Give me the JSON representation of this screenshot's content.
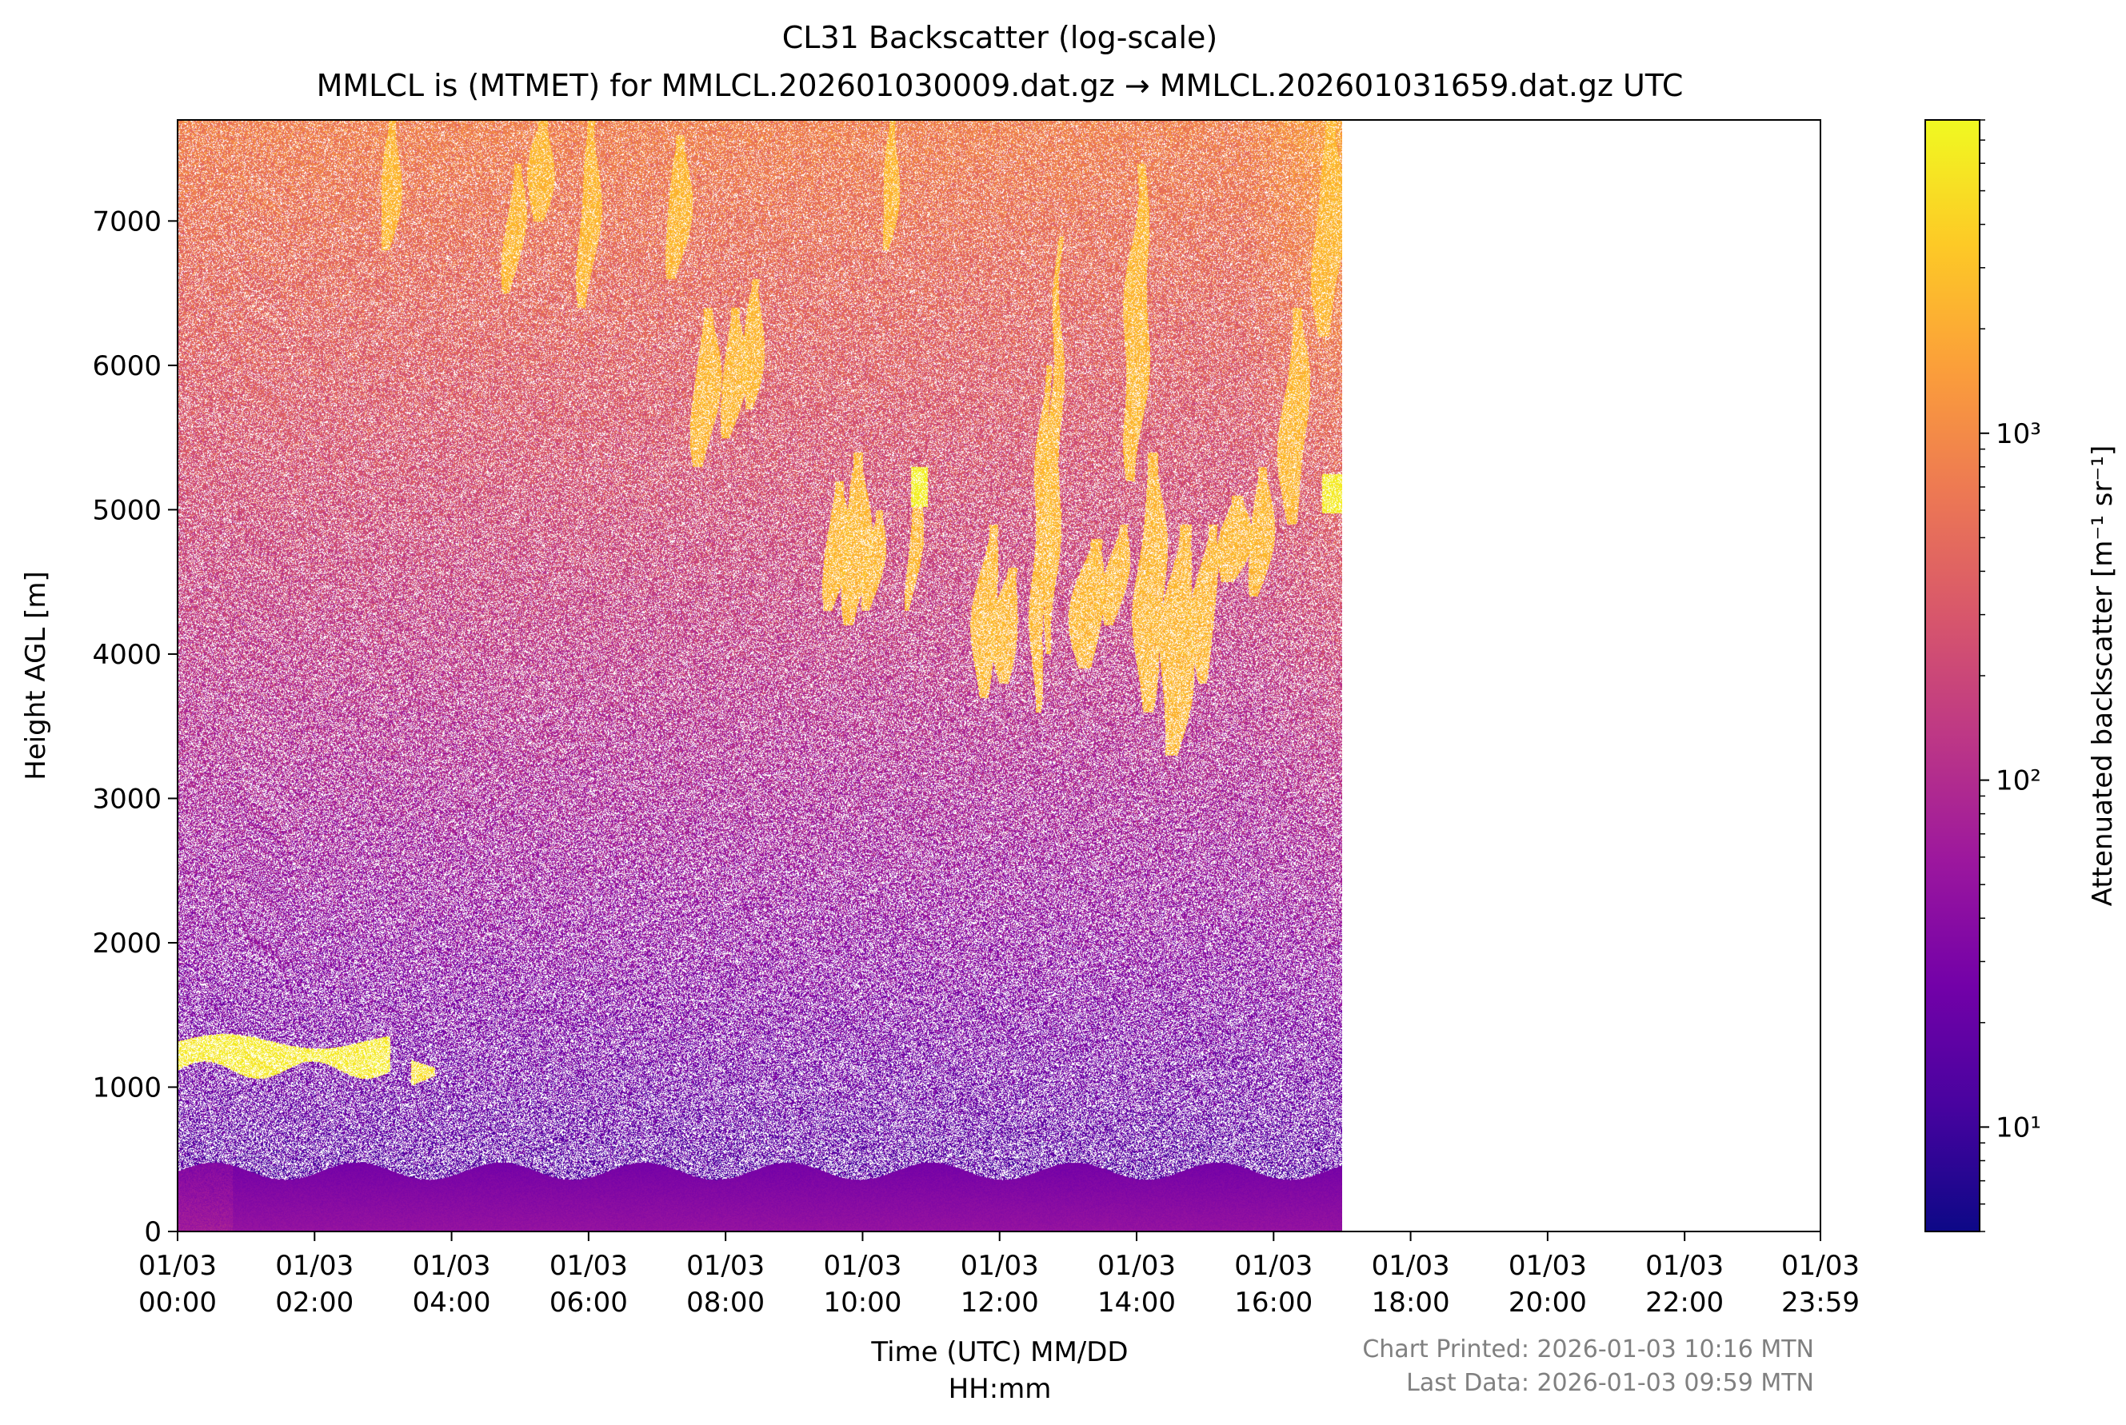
{
  "chart_data": {
    "type": "heatmap",
    "title": "CL31 Backscatter (log-scale)",
    "subtitle": "MMLCL is (MTMET) for MMLCL.202601030009.dat.gz → MMLCL.202601031659.dat.gz UTC",
    "xlabel": [
      "Time (UTC) MM/DD",
      "HH:mm"
    ],
    "ylabel": "Height AGL [m]",
    "x_range_hours": [
      0,
      23.983
    ],
    "data_end_hours": 17.0,
    "ylim": [
      0,
      7700
    ],
    "x_ticks": [
      {
        "hours": 0,
        "line1": "01/03",
        "line2": "00:00"
      },
      {
        "hours": 2,
        "line1": "01/03",
        "line2": "02:00"
      },
      {
        "hours": 4,
        "line1": "01/03",
        "line2": "04:00"
      },
      {
        "hours": 6,
        "line1": "01/03",
        "line2": "06:00"
      },
      {
        "hours": 8,
        "line1": "01/03",
        "line2": "08:00"
      },
      {
        "hours": 10,
        "line1": "01/03",
        "line2": "10:00"
      },
      {
        "hours": 12,
        "line1": "01/03",
        "line2": "12:00"
      },
      {
        "hours": 14,
        "line1": "01/03",
        "line2": "14:00"
      },
      {
        "hours": 16,
        "line1": "01/03",
        "line2": "16:00"
      },
      {
        "hours": 18,
        "line1": "01/03",
        "line2": "18:00"
      },
      {
        "hours": 20,
        "line1": "01/03",
        "line2": "20:00"
      },
      {
        "hours": 22,
        "line1": "01/03",
        "line2": "22:00"
      },
      {
        "hours": 23.983,
        "line1": "01/03",
        "line2": "23:59"
      }
    ],
    "y_ticks": [
      0,
      1000,
      2000,
      3000,
      4000,
      5000,
      6000,
      7000
    ],
    "colorbar": {
      "label": "Attenuated backscatter [m⁻¹ sr⁻¹]",
      "scale": "log",
      "range": [
        5,
        8000
      ],
      "colormap": "plasma",
      "ticks": [
        {
          "value": 10,
          "label": "10¹"
        },
        {
          "value": 100,
          "label": "10²"
        },
        {
          "value": 1000,
          "label": "10³"
        }
      ],
      "colors": [
        "#0d0887",
        "#47039f",
        "#7301a8",
        "#9c179e",
        "#bd3786",
        "#d8576b",
        "#ed7953",
        "#fb9f3a",
        "#fdca26",
        "#f0f921"
      ]
    },
    "features": [
      {
        "name": "boundary layer",
        "hours": [
          0,
          17.0
        ],
        "height_m": [
          0,
          450
        ],
        "log10_value": 1.7
      },
      {
        "name": "low cloud",
        "hours": [
          0,
          3.1
        ],
        "height_m": [
          1100,
          1350
        ],
        "log10_value": 3.7
      },
      {
        "name": "low cloud",
        "hours": [
          3.4,
          3.75
        ],
        "height_m": [
          1000,
          1200
        ],
        "log10_value": 3.6
      },
      {
        "name": "cloud",
        "hours": [
          10.7,
          10.95
        ],
        "height_m": [
          5000,
          5300
        ],
        "log10_value": 3.8
      },
      {
        "name": "cloud",
        "hours": [
          16.7,
          17.0
        ],
        "height_m": [
          4950,
          5300
        ],
        "log10_value": 3.8
      },
      {
        "name": "cirrus streaks",
        "hours": [
          9.5,
          16.0
        ],
        "height_m": [
          2500,
          7000
        ],
        "log10_value": 3.3
      }
    ]
  },
  "footer": {
    "printed": "Chart Printed: 2026-01-03 10:16 MTN",
    "last_data": "Last Data: 2026-01-03 09:59 MTN"
  }
}
